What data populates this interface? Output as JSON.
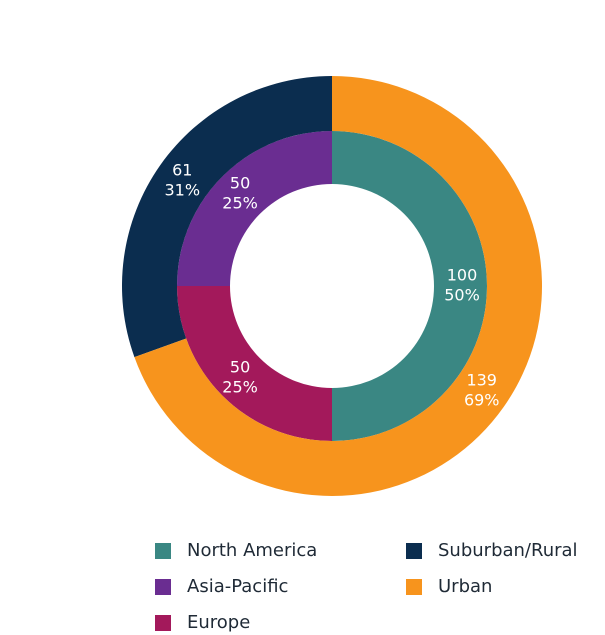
{
  "chart_data": {
    "type": "donut",
    "rings": [
      {
        "categories": [
          "North America",
          "Asia-Pacific",
          "Europe"
        ],
        "colors": [
          "#3a8783",
          "#6a2d91",
          "#a3195b"
        ],
        "values": [
          100,
          50,
          50
        ],
        "percent_labels": [
          "50%",
          "25%",
          "25%"
        ]
      },
      {
        "categories": [
          "Suburban/Rural",
          "Urban"
        ],
        "colors": [
          "#0b2d4f",
          "#f7941d"
        ],
        "values": [
          61,
          139
        ],
        "percent_labels": [
          "31%",
          "69%"
        ]
      }
    ]
  }
}
